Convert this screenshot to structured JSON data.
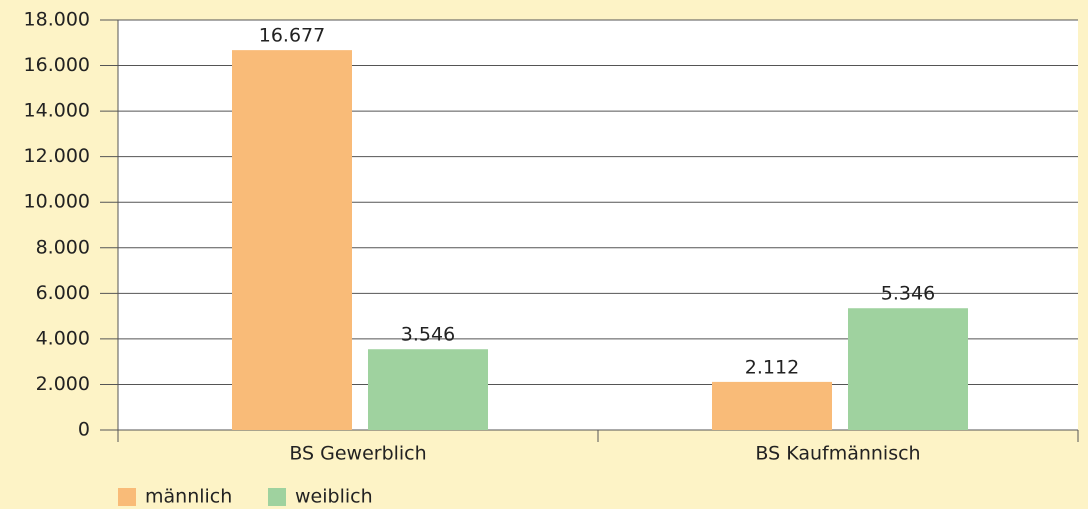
{
  "chart_data": {
    "type": "bar",
    "categories": [
      "BS Gewerblich",
      "BS Kaufmännisch"
    ],
    "series": [
      {
        "name": "männlich",
        "color": "#f9bb78",
        "values": [
          16677,
          2112
        ],
        "value_labels": [
          "16.677",
          "2.112"
        ]
      },
      {
        "name": "weiblich",
        "color": "#9fd29f",
        "values": [
          3546,
          5346
        ],
        "value_labels": [
          "3.546",
          "5.346"
        ]
      }
    ],
    "ylim": [
      0,
      18000
    ],
    "yticks": [
      0,
      {
        "value": 2000,
        "label": "2.000"
      },
      {
        "value": 4000,
        "label": "4.000"
      },
      {
        "value": 6000,
        "label": "6.000"
      },
      {
        "value": 8000,
        "label": "8.000"
      },
      {
        "value": 10000,
        "label": "10.000"
      },
      {
        "value": 12000,
        "label": "12.000"
      },
      {
        "value": 14000,
        "label": "14.000"
      },
      {
        "value": 16000,
        "label": "16.000"
      },
      {
        "value": 18000,
        "label": "18.000"
      }
    ],
    "grid": true,
    "legend": "bottom-left"
  }
}
